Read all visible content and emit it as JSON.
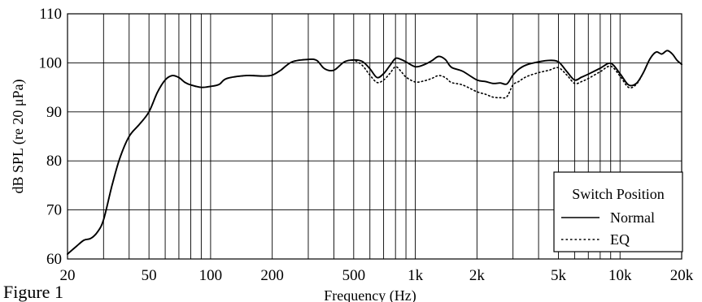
{
  "caption": "Figure 1",
  "chart_data": {
    "type": "line",
    "title": "",
    "xlabel": "Frequency (Hz)",
    "ylabel": "dB SPL (re 20 μPa)",
    "x_scale": "log",
    "xlim": [
      20,
      20000
    ],
    "ylim": [
      60,
      110
    ],
    "grid": true,
    "x_ticks": [
      20,
      50,
      100,
      200,
      500,
      1000,
      2000,
      5000,
      10000,
      20000
    ],
    "x_tick_labels": [
      "20",
      "50",
      "100",
      "200",
      "500",
      "1k",
      "2k",
      "5k",
      "10k",
      "20k"
    ],
    "y_ticks": [
      60,
      70,
      80,
      90,
      100,
      110
    ],
    "y_tick_labels": [
      "60",
      "70",
      "80",
      "90",
      "100",
      "110"
    ],
    "legend": {
      "title": "Switch Position",
      "placement": "bottom-right"
    },
    "series": [
      {
        "name": "Normal",
        "style": "solid",
        "x": [
          20,
          22,
          24,
          26,
          28,
          30,
          33,
          36,
          40,
          45,
          50,
          55,
          60,
          65,
          70,
          75,
          80,
          90,
          100,
          110,
          120,
          150,
          180,
          200,
          220,
          250,
          300,
          330,
          360,
          400,
          450,
          500,
          550,
          600,
          650,
          700,
          750,
          800,
          850,
          900,
          1000,
          1100,
          1200,
          1300,
          1400,
          1500,
          1700,
          2000,
          2200,
          2400,
          2600,
          2800,
          3000,
          3200,
          3500,
          4000,
          4500,
          5000,
          5500,
          6000,
          6500,
          7000,
          8000,
          9000,
          10000,
          11000,
          12000,
          13000,
          14000,
          15000,
          16000,
          17000,
          18000,
          19000,
          20000
        ],
        "y": [
          61,
          62.5,
          63.8,
          64.2,
          65.5,
          68,
          75,
          80.5,
          85,
          87.5,
          90,
          94,
          96.5,
          97.4,
          97,
          96,
          95.5,
          95,
          95.2,
          95.6,
          96.8,
          97.4,
          97.3,
          97.5,
          98.5,
          100.2,
          100.7,
          100.5,
          98.8,
          98.5,
          100.2,
          100.6,
          100.3,
          98.8,
          97,
          97.8,
          99.4,
          100.9,
          100.7,
          100.2,
          99.2,
          99.6,
          100.4,
          101.3,
          100.7,
          99.1,
          98.3,
          96.5,
          96.2,
          95.8,
          95.9,
          95.7,
          97.5,
          98.7,
          99.6,
          100.2,
          100.5,
          100.2,
          98.2,
          96.5,
          97.1,
          97.7,
          98.9,
          99.9,
          97.8,
          95.5,
          95.8,
          98,
          100.8,
          102.2,
          101.8,
          102.5,
          101.8,
          100.5,
          99.7
        ]
      },
      {
        "name": "EQ",
        "style": "dotted",
        "x": [
          20,
          22,
          24,
          26,
          28,
          30,
          33,
          36,
          40,
          45,
          50,
          55,
          60,
          65,
          70,
          75,
          80,
          90,
          100,
          110,
          120,
          150,
          180,
          200,
          220,
          250,
          300,
          330,
          360,
          400,
          450,
          500,
          550,
          600,
          650,
          700,
          750,
          800,
          850,
          900,
          1000,
          1100,
          1200,
          1300,
          1400,
          1500,
          1700,
          2000,
          2200,
          2400,
          2600,
          2800,
          3000,
          3200,
          3500,
          4000,
          4500,
          5000,
          5500,
          6000,
          6500,
          7000,
          8000,
          9000,
          10000,
          11000,
          12000,
          13000,
          14000,
          15000,
          16000,
          17000,
          18000,
          19000,
          20000
        ],
        "y": [
          61,
          62.5,
          63.8,
          64.2,
          65.5,
          68,
          75,
          80.5,
          85,
          87.5,
          90,
          94,
          96.5,
          97.4,
          97,
          96,
          95.5,
          95,
          95.2,
          95.6,
          96.8,
          97.4,
          97.3,
          97.5,
          98.5,
          100.2,
          100.7,
          100.5,
          98.8,
          98.5,
          100.2,
          100.5,
          99.5,
          97.5,
          96,
          96.5,
          97.8,
          99.2,
          98.3,
          97.1,
          96.1,
          96.3,
          96.8,
          97.4,
          97,
          96,
          95.5,
          94.1,
          93.6,
          93,
          92.9,
          93.1,
          95.5,
          96.2,
          97.2,
          98,
          98.5,
          99,
          97.5,
          95.8,
          96.2,
          96.8,
          98.2,
          99.3,
          97.3,
          95,
          95.6,
          98,
          100.8,
          102.2,
          101.8,
          102.5,
          101.8,
          100.5,
          99.7
        ]
      }
    ]
  }
}
